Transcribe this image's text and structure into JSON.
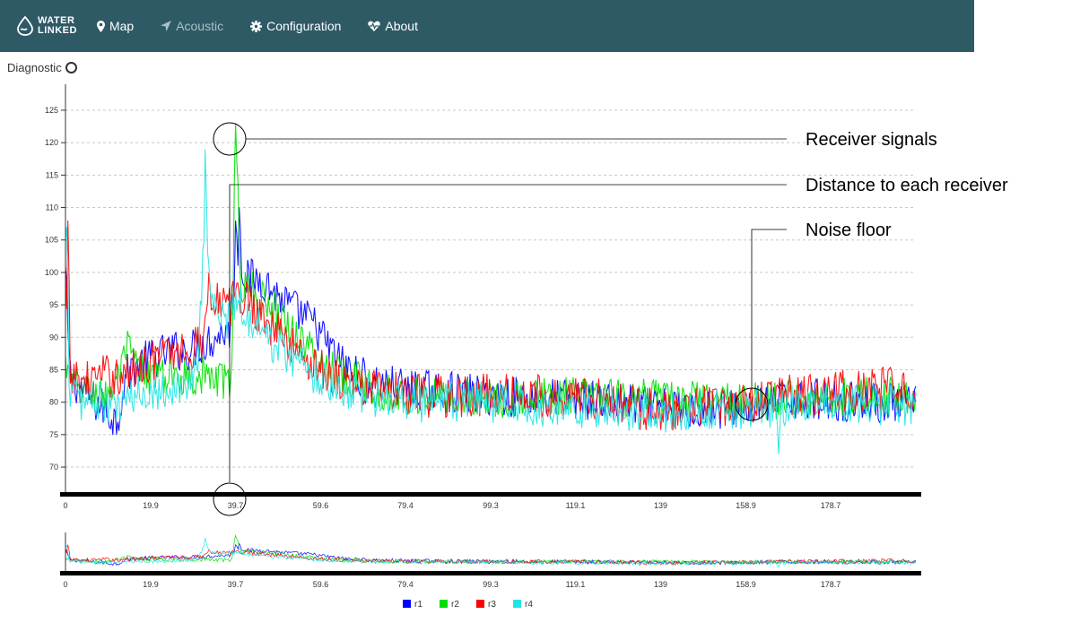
{
  "navbar": {
    "logo_top": "WATER",
    "logo_bottom": "LINKED",
    "items": [
      {
        "label": "Map",
        "icon": "map-marker-icon",
        "active": true
      },
      {
        "label": "Acoustic",
        "icon": "location-arrow-icon",
        "active": false
      },
      {
        "label": "Configuration",
        "icon": "gear-icon",
        "active": true
      },
      {
        "label": "About",
        "icon": "heart-pulse-icon",
        "active": true
      }
    ]
  },
  "diagnostic": {
    "title": "Diagnostic",
    "icon": "refresh-circle-icon"
  },
  "annotations": [
    {
      "label": "Receiver signals"
    },
    {
      "label": "Distance to each receiver"
    },
    {
      "label": "Noise floor"
    }
  ],
  "chart_data": {
    "type": "line",
    "x_ticks": [
      "0",
      "19.9",
      "39.7",
      "59.6",
      "79.4",
      "99.3",
      "119.1",
      "139",
      "158.9",
      "178.7"
    ],
    "x_tick_values": [
      0,
      19.9,
      39.7,
      59.6,
      79.4,
      99.3,
      119.1,
      139,
      158.9,
      178.7
    ],
    "xlim": [
      0,
      198.6
    ],
    "y_ticks": [
      70,
      75,
      80,
      85,
      90,
      95,
      100,
      105,
      110,
      115,
      120,
      125
    ],
    "ylim": [
      66,
      129
    ],
    "grid": true,
    "legend": "bottom-center",
    "series": [
      {
        "name": "r1",
        "color": "#0000ff",
        "anchors": [
          [
            0,
            100
          ],
          [
            1,
            84
          ],
          [
            5,
            81
          ],
          [
            9,
            79
          ],
          [
            12,
            77
          ],
          [
            14,
            84
          ],
          [
            17,
            86
          ],
          [
            21,
            87
          ],
          [
            25,
            88
          ],
          [
            29,
            88
          ],
          [
            32,
            89
          ],
          [
            35,
            90
          ],
          [
            37,
            91
          ],
          [
            38.5,
            91
          ],
          [
            39.5,
            100
          ],
          [
            40.5,
            104
          ],
          [
            42,
            99
          ],
          [
            46,
            99
          ],
          [
            50,
            96
          ],
          [
            54,
            94
          ],
          [
            58,
            92
          ],
          [
            62,
            88
          ],
          [
            66,
            85
          ],
          [
            72,
            83
          ],
          [
            80,
            82
          ],
          [
            100,
            81
          ],
          [
            120,
            80.5
          ],
          [
            140,
            79
          ],
          [
            158,
            79
          ],
          [
            170,
            80.5
          ],
          [
            190,
            80
          ],
          [
            198,
            79.5
          ]
        ],
        "spikes": [
          [
            40.5,
            110
          ],
          [
            39.8,
            108
          ]
        ],
        "noise": 3.2
      },
      {
        "name": "r2",
        "color": "#00e000",
        "anchors": [
          [
            0,
            86
          ],
          [
            1,
            83
          ],
          [
            4,
            82
          ],
          [
            8,
            81
          ],
          [
            11,
            82
          ],
          [
            13,
            85
          ],
          [
            15,
            88
          ],
          [
            17,
            85
          ],
          [
            20,
            84
          ],
          [
            25,
            84
          ],
          [
            29,
            84
          ],
          [
            33,
            84
          ],
          [
            37,
            83
          ],
          [
            38.8,
            84
          ],
          [
            39.6,
            118
          ],
          [
            41,
            98
          ],
          [
            44,
            97
          ],
          [
            48,
            95
          ],
          [
            52,
            92
          ],
          [
            56,
            89
          ],
          [
            60,
            86
          ],
          [
            66,
            84
          ],
          [
            72,
            82
          ],
          [
            80,
            81
          ],
          [
            100,
            80.5
          ],
          [
            120,
            81
          ],
          [
            140,
            80.5
          ],
          [
            158,
            80
          ],
          [
            170,
            80.5
          ],
          [
            190,
            81
          ],
          [
            198,
            81
          ]
        ],
        "spikes": [
          [
            39.6,
            123
          ],
          [
            40.1,
            117
          ],
          [
            14.5,
            91
          ]
        ],
        "noise": 3.0
      },
      {
        "name": "r3",
        "color": "#ff0000",
        "anchors": [
          [
            0,
            98
          ],
          [
            1,
            84
          ],
          [
            4,
            83
          ],
          [
            8,
            84
          ],
          [
            11,
            84
          ],
          [
            14,
            84
          ],
          [
            18,
            86
          ],
          [
            22,
            87
          ],
          [
            26,
            88
          ],
          [
            30,
            88
          ],
          [
            32,
            90
          ],
          [
            33.5,
            97
          ],
          [
            36,
            96
          ],
          [
            38,
            94
          ],
          [
            40,
            97
          ],
          [
            44,
            95
          ],
          [
            48,
            92
          ],
          [
            52,
            89
          ],
          [
            56,
            87
          ],
          [
            60,
            85
          ],
          [
            66,
            83
          ],
          [
            72,
            82
          ],
          [
            80,
            81
          ],
          [
            100,
            81
          ],
          [
            120,
            81
          ],
          [
            135,
            79
          ],
          [
            145,
            79
          ],
          [
            158,
            80
          ],
          [
            170,
            81
          ],
          [
            190,
            82
          ],
          [
            198,
            82
          ]
        ],
        "spikes": [
          [
            0.5,
            108
          ],
          [
            33.5,
            100
          ]
        ],
        "noise": 3.4
      },
      {
        "name": "r4",
        "color": "#22e4e4",
        "anchors": [
          [
            0,
            103
          ],
          [
            1,
            82
          ],
          [
            4,
            80
          ],
          [
            8,
            80
          ],
          [
            11,
            79
          ],
          [
            14,
            80
          ],
          [
            17,
            81
          ],
          [
            20,
            82
          ],
          [
            25,
            82
          ],
          [
            29,
            83
          ],
          [
            31,
            85
          ],
          [
            32.5,
            110
          ],
          [
            34,
            96
          ],
          [
            36,
            93
          ],
          [
            38,
            93
          ],
          [
            40,
            96
          ],
          [
            43,
            93
          ],
          [
            47,
            90
          ],
          [
            51,
            88
          ],
          [
            55,
            86
          ],
          [
            59,
            84
          ],
          [
            65,
            82
          ],
          [
            72,
            81
          ],
          [
            80,
            80
          ],
          [
            100,
            80
          ],
          [
            120,
            79
          ],
          [
            140,
            78.5
          ],
          [
            158,
            79
          ],
          [
            170,
            79.5
          ],
          [
            190,
            79.5
          ],
          [
            198,
            79.5
          ]
        ],
        "spikes": [
          [
            32.5,
            119
          ],
          [
            0.3,
            107
          ],
          [
            166.5,
            72
          ]
        ],
        "noise": 3.2
      }
    ]
  }
}
